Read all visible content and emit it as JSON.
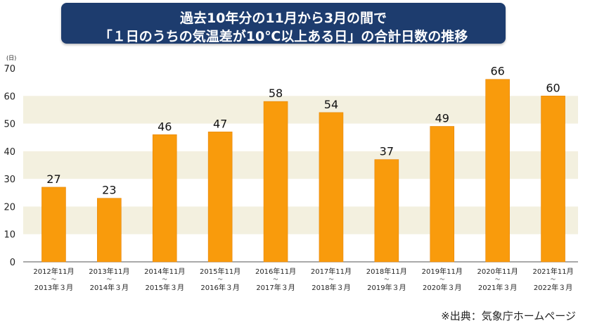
{
  "title": {
    "line1": "過去10年分の11月から3月の間で",
    "line2": "「１日のうちの気温差が10℃以上ある日」の合計日数の推移"
  },
  "source": "※出典：気象庁ホームページ",
  "colors": {
    "bar": "#f99b0c",
    "band": "#f3f0df",
    "title_bg": "#1d3c6e"
  },
  "chart_data": {
    "type": "bar",
    "unit_label": "(日)",
    "categories": [
      [
        "2012年11月",
        "〜",
        "2013年３月"
      ],
      [
        "2013年11月",
        "〜",
        "2014年３月"
      ],
      [
        "2014年11月",
        "〜",
        "2015年３月"
      ],
      [
        "2015年11月",
        "〜",
        "2016年３月"
      ],
      [
        "2016年11月",
        "〜",
        "2017年３月"
      ],
      [
        "2017年11月",
        "〜",
        "2018年３月"
      ],
      [
        "2018年11月",
        "〜",
        "2019年３月"
      ],
      [
        "2019年11月",
        "〜",
        "2020年３月"
      ],
      [
        "2020年11月",
        "〜",
        "2021年３月"
      ],
      [
        "2021年11月",
        "〜",
        "2022年３月"
      ]
    ],
    "values": [
      27,
      23,
      46,
      47,
      58,
      54,
      37,
      49,
      66,
      60
    ],
    "ylim": [
      0,
      70
    ],
    "yticks": [
      0,
      10,
      20,
      30,
      40,
      50,
      60,
      70
    ]
  }
}
